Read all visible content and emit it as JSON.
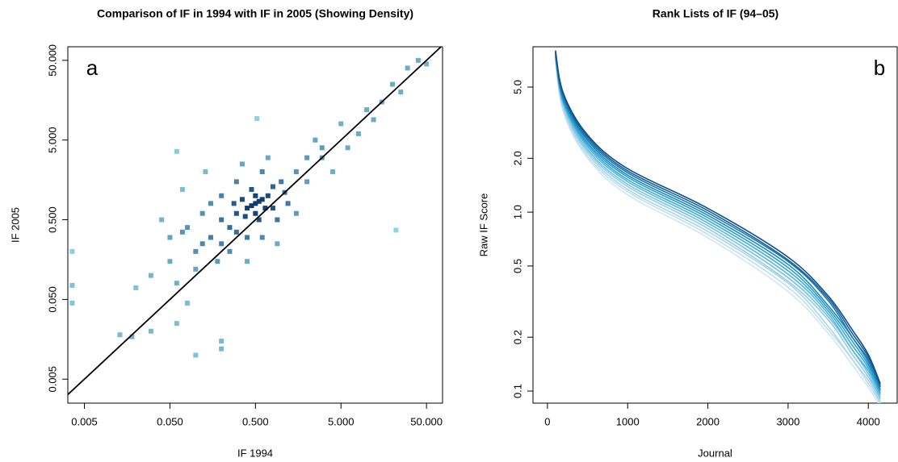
{
  "chart_data": [
    {
      "type": "scatter",
      "title": "Comparison of IF in 1994 with IF in 2005 (Showing Density)",
      "x_label": "IF 1994",
      "y_label": "IF 2005",
      "annotation": "a",
      "log_x": true,
      "log_y": true,
      "identity_line": true,
      "color": "#8fd3e8",
      "xlim": [
        0.0032,
        77
      ],
      "ylim": [
        0.0025,
        74
      ],
      "xticks": [
        0.005,
        {
          "value": 0.05,
          "label": "0.050"
        },
        {
          "value": 0.5,
          "label": "0.500"
        },
        {
          "value": 5,
          "label": "5.000"
        },
        {
          "value": 50,
          "label": "50.000"
        }
      ],
      "yticks": [
        0.005,
        {
          "value": 0.05,
          "label": "0.050"
        },
        {
          "value": 0.5,
          "label": "0.500"
        },
        {
          "value": 5,
          "label": "5.000"
        },
        {
          "value": 50,
          "label": "50.000"
        }
      ],
      "x": [
        0.0036,
        0.0036,
        0.0036,
        0.013,
        0.018,
        0.03,
        0.02,
        0.03,
        0.06,
        0.1,
        0.2,
        0.2,
        0.08,
        0.05,
        0.07,
        0.12,
        22,
        0.06,
        0.52,
        40,
        50,
        30,
        20,
        15,
        10,
        8,
        5,
        3,
        2,
        6,
        12,
        25,
        0.5,
        0.4,
        0.6,
        0.3,
        0.7,
        0.45,
        0.55,
        0.35,
        0.8,
        0.25,
        1.0,
        0.2,
        0.15,
        1.5,
        2,
        0.9,
        0.3,
        0.6,
        0.12,
        0.1,
        0.08,
        0.15,
        0.2,
        3,
        2.5,
        1.2,
        0.4,
        0.6,
        0.25,
        0.18,
        0.1,
        0.06,
        0.4,
        0.9,
        1.5,
        4,
        0.7,
        0.35,
        0.5,
        0.45,
        0.55,
        0.5,
        0.65,
        0.38,
        0.3,
        0.8,
        1.1,
        0.28,
        0.2,
        0.05,
        0.04,
        0.07,
        0.13
      ],
      "values": [
        0.2,
        0.075,
        0.045,
        0.018,
        0.017,
        0.02,
        0.07,
        0.1,
        0.025,
        0.01,
        0.012,
        0.015,
        0.045,
        0.3,
        0.35,
        0.25,
        0.37,
        3.6,
        9.3,
        50,
        45,
        40,
        25,
        15,
        12,
        6,
        8,
        4,
        3,
        4,
        9,
        20,
        0.8,
        0.7,
        0.9,
        0.6,
        1.0,
        1.2,
        0.5,
        0.9,
        0.7,
        0.4,
        1.5,
        0.5,
        0.3,
        2.0,
        1.5,
        0.5,
        1.5,
        2,
        0.6,
        0.2,
        0.4,
        0.8,
        1.0,
        3,
        5,
        0.8,
        0.3,
        0.3,
        0.2,
        0.15,
        0.12,
        0.08,
        0.15,
        0.25,
        0.6,
        2,
        3,
        2.5,
        0.6,
        0.75,
        0.85,
        1.0,
        0.7,
        0.55,
        0.35,
        1.3,
        1.1,
        0.8,
        0.25,
        0.15,
        0.5,
        1.2,
        2
      ]
    },
    {
      "type": "line",
      "title": "Rank Lists of IF (94–05)",
      "x_label": "Journal",
      "y_label": "Raw IF Score",
      "annotation": "b",
      "log_y": true,
      "xlim": [
        -180,
        4360
      ],
      "ylim": [
        0.0856,
        8.4
      ],
      "xticks": [
        0,
        1000,
        2000,
        3000,
        4000
      ],
      "yticks": [
        0.1,
        0.2,
        0.5,
        {
          "value": 1,
          "label": "1.0"
        },
        {
          "value": 2,
          "label": "2.0"
        },
        {
          "value": 5,
          "label": "5.0"
        }
      ],
      "x": [
        100,
        200,
        500,
        1000,
        2000,
        3000,
        3500,
        3800,
        4000,
        4150
      ],
      "series": [
        {
          "color": "#d0e6f2",
          "values": [
            7.0,
            3.6,
            2.0,
            1.25,
            0.72,
            0.36,
            0.21,
            0.14,
            0.105,
            0.082
          ]
        },
        {
          "color": "#bfdeee",
          "values": [
            7.1,
            3.7,
            2.06,
            1.3,
            0.75,
            0.38,
            0.22,
            0.15,
            0.11,
            0.085
          ]
        },
        {
          "color": "#a9d4ea",
          "values": [
            7.2,
            3.8,
            2.13,
            1.34,
            0.78,
            0.4,
            0.23,
            0.15,
            0.115,
            0.087
          ]
        },
        {
          "color": "#8fcbe6",
          "values": [
            7.3,
            3.9,
            2.19,
            1.39,
            0.81,
            0.41,
            0.25,
            0.16,
            0.12,
            0.09
          ]
        },
        {
          "color": "#73c1e2",
          "values": [
            7.4,
            4.0,
            2.25,
            1.43,
            0.84,
            0.43,
            0.26,
            0.17,
            0.125,
            0.092
          ]
        },
        {
          "color": "#56b6dd",
          "values": [
            7.5,
            4.1,
            2.32,
            1.48,
            0.87,
            0.45,
            0.27,
            0.17,
            0.13,
            0.095
          ]
        },
        {
          "color": "#3aa9d4",
          "values": [
            7.5,
            4.1,
            2.38,
            1.52,
            0.9,
            0.47,
            0.28,
            0.18,
            0.135,
            0.097
          ]
        },
        {
          "color": "#2b9bcb",
          "values": [
            7.6,
            4.2,
            2.44,
            1.57,
            0.93,
            0.49,
            0.29,
            0.19,
            0.14,
            0.1
          ]
        },
        {
          "color": "#2189bd",
          "values": [
            7.7,
            4.3,
            2.51,
            1.61,
            0.96,
            0.51,
            0.3,
            0.2,
            0.145,
            0.102
          ]
        },
        {
          "color": "#1b76ad",
          "values": [
            7.8,
            4.4,
            2.57,
            1.66,
            0.99,
            0.53,
            0.32,
            0.2,
            0.15,
            0.105
          ]
        },
        {
          "color": "#16629a",
          "values": [
            7.9,
            4.5,
            2.64,
            1.7,
            1.02,
            0.54,
            0.33,
            0.21,
            0.155,
            0.107
          ]
        },
        {
          "color": "#114f87",
          "values": [
            8.0,
            4.6,
            2.7,
            1.75,
            1.05,
            0.56,
            0.34,
            0.22,
            0.16,
            0.11
          ]
        }
      ]
    }
  ]
}
